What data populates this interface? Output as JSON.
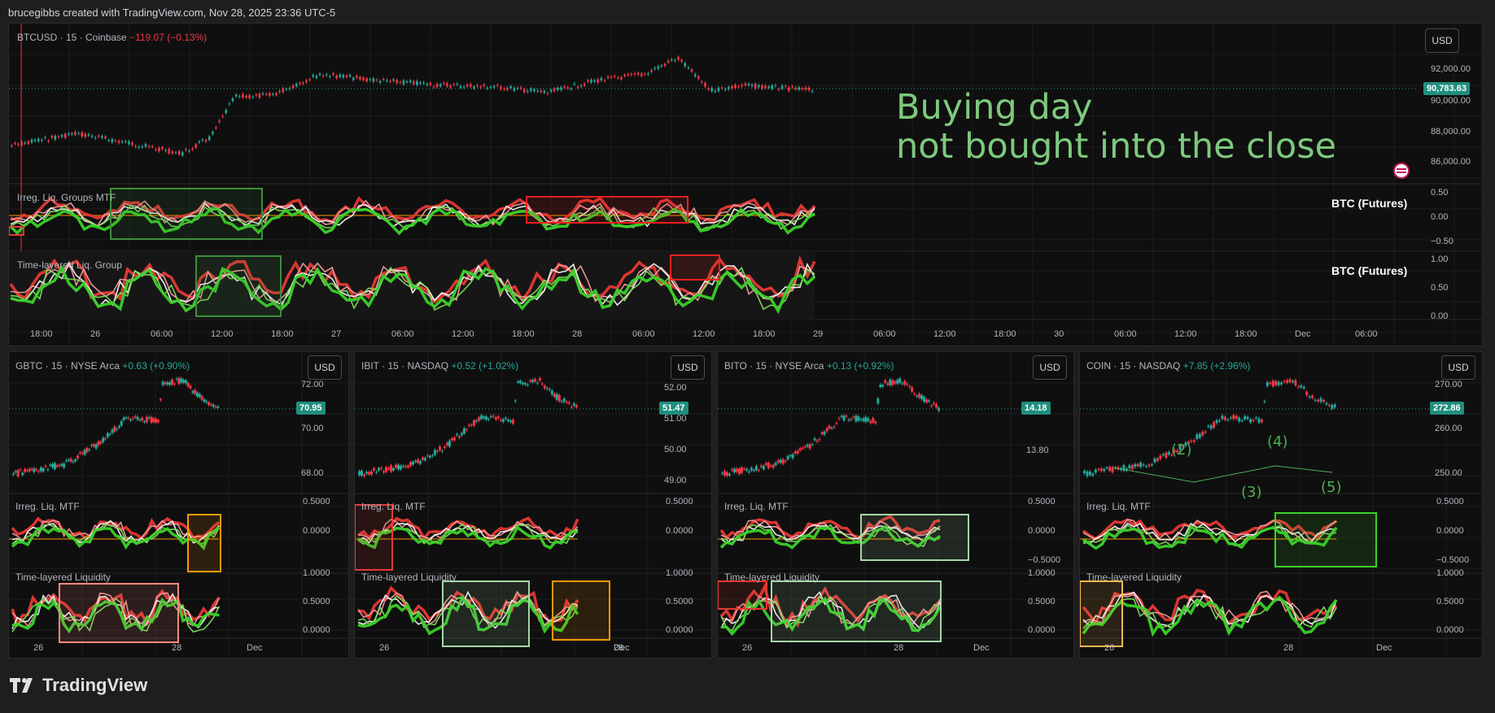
{
  "header": {
    "text": "brucegibbs created with TradingView.com, Nov 28, 2025 23:36 UTC-5"
  },
  "brand": {
    "name": "TradingView",
    "logo": "tv-logo-icon"
  },
  "colors": {
    "up": "#26a69a",
    "down": "#f23645",
    "green": "#4caf50",
    "red": "#e53935",
    "teal": "#1f8f7e"
  },
  "main": {
    "symbol": "BTCUSD · 15 · Coinbase",
    "change": "−119.07 (−0.13%)",
    "currency": "USD",
    "last_price": "90,783.63",
    "price_labels": [
      "92,000.00",
      "90,000.00",
      "88,000.00",
      "86,000.00"
    ],
    "annotation_line1": "Buying day",
    "annotation_line2": "not bought into the close",
    "ind1_title": "Irreg. Liq. Groups MTF",
    "ind1_levels": [
      "0.50",
      "0.00",
      "−0.50"
    ],
    "ind1_tag": "BTC (Futures)",
    "ind2_title": "Time-layered Liq. Group",
    "ind2_levels": [
      "1.00",
      "0.50",
      "0.00"
    ],
    "ind2_tag": "BTC (Futures)",
    "time_labels": [
      "18:00",
      "26",
      "06:00",
      "12:00",
      "18:00",
      "27",
      "06:00",
      "12:00",
      "18:00",
      "28",
      "06:00",
      "12:00",
      "18:00",
      "29",
      "06:00",
      "12:00",
      "18:00",
      "30",
      "06:00",
      "12:00",
      "18:00",
      "Dec",
      "06:00"
    ]
  },
  "panes": [
    {
      "symbol": "GBTC · 15 · NYSE Arca",
      "change": "+0.63 (+0.90%)",
      "currency": "USD",
      "last": "70.95",
      "prices": [
        "72.00",
        "70.00",
        "68.00"
      ],
      "ind1": "Irreg. Liq. MTF",
      "ind1_levels": [
        "0.5000",
        "0.0000"
      ],
      "ind2": "Time-layered Liquidity",
      "ind2_levels": [
        "1.0000",
        "0.5000",
        "0.0000"
      ],
      "times": [
        "26",
        "28",
        "Dec"
      ]
    },
    {
      "symbol": "IBIT · 15 · NASDAQ",
      "change": "+0.52 (+1.02%)",
      "currency": "USD",
      "last": "51.47",
      "prices": [
        "52.00",
        "51.00",
        "50.00",
        "49.00"
      ],
      "ind1": "Irreg. Liq. MTF",
      "ind1_levels": [
        "0.5000",
        "0.0000"
      ],
      "ind2": "Time-layered Liquidity",
      "ind2_levels": [
        "1.0000",
        "0.5000",
        "0.0000"
      ],
      "times": [
        "26",
        "28",
        "Dec"
      ]
    },
    {
      "symbol": "BITO · 15 · NYSE Arca",
      "change": "+0.13 (+0.92%)",
      "currency": "USD",
      "last": "14.18",
      "prices": [
        "13.80"
      ],
      "ind1": "Irreg. Liq. MTF",
      "ind1_levels": [
        "0.5000",
        "0.0000",
        "−0.5000"
      ],
      "ind2": "Time-layered Liquidity",
      "ind2_levels": [
        "1.0000",
        "0.5000",
        "0.0000"
      ],
      "times": [
        "26",
        "28",
        "Dec"
      ]
    },
    {
      "symbol": "COIN · 15 · NASDAQ",
      "change": "+7.85 (+2.96%)",
      "currency": "USD",
      "last": "272.86",
      "prices": [
        "270.00",
        "260.00",
        "250.00"
      ],
      "ind1": "Irreg. Liq. MTF",
      "ind1_levels": [
        "0.5000",
        "0.0000",
        "−0.5000"
      ],
      "ind2": "Time-layered Liquidity",
      "ind2_levels": [
        "1.0000",
        "0.5000",
        "0.0000"
      ],
      "times": [
        "26",
        "28",
        "Dec"
      ],
      "waves": [
        "(2)",
        "(4)",
        "(3)",
        "(5)"
      ]
    }
  ]
}
